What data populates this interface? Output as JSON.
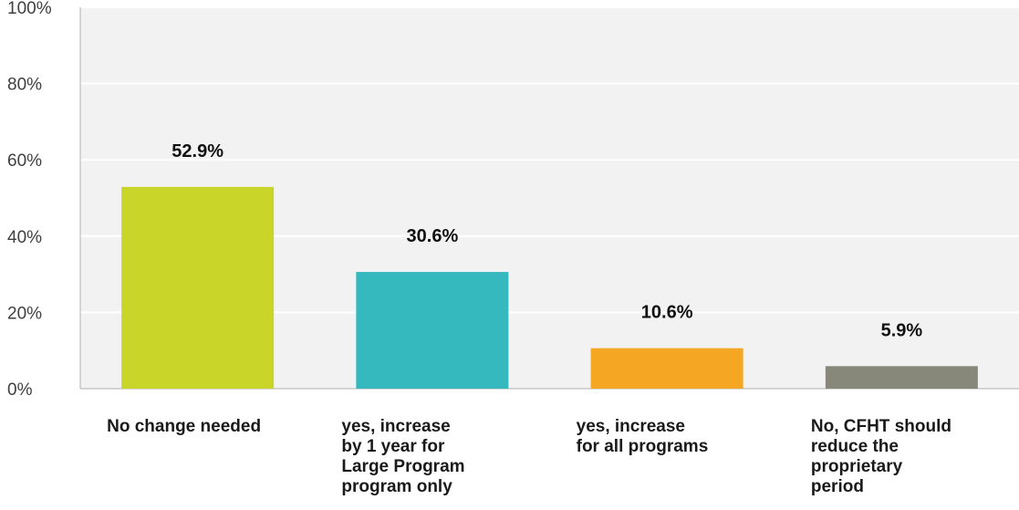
{
  "chart_data": {
    "type": "bar",
    "categories": [
      [
        "No change needed"
      ],
      [
        "yes, increase",
        "by 1 year for",
        "Large Program",
        "program only"
      ],
      [
        "yes, increase",
        "for all programs"
      ],
      [
        "No, CFHT should",
        "reduce the",
        "proprietary",
        "period"
      ]
    ],
    "values": [
      52.9,
      30.6,
      10.6,
      5.9
    ],
    "data_labels": [
      "52.9%",
      "30.6%",
      "10.6%",
      "5.9%"
    ],
    "colors": [
      "#cad52a",
      "#35b8be",
      "#f5a623",
      "#87877a"
    ],
    "ylim": [
      0,
      100
    ],
    "yticks": [
      0,
      20,
      40,
      60,
      80,
      100
    ],
    "ytick_labels": [
      "0%",
      "20%",
      "40%",
      "60%",
      "80%",
      "100%"
    ],
    "grid": true,
    "title": "",
    "xlabel": "",
    "ylabel": ""
  }
}
